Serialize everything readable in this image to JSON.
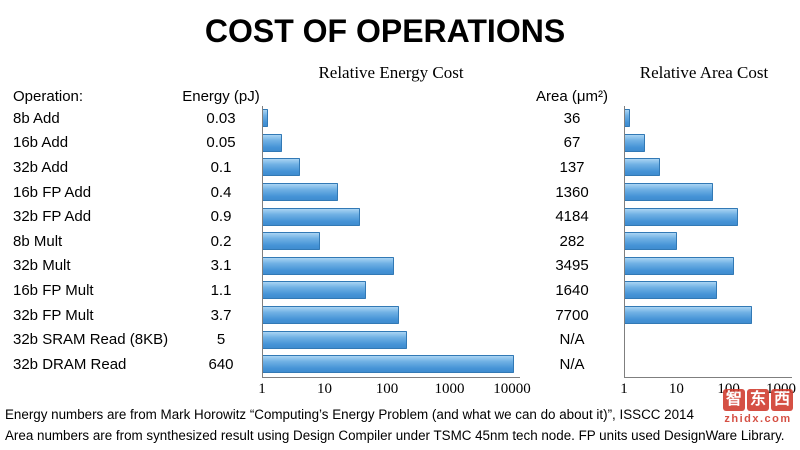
{
  "title": "COST OF OPERATIONS",
  "headers": {
    "operation": "Operation:",
    "energy": "Energy (pJ)",
    "area": "Area (μm²)",
    "energy_chart": "Relative Energy Cost",
    "area_chart": "Relative Area Cost"
  },
  "rows": [
    {
      "op": "8b Add",
      "energy": "0.03",
      "area": "36"
    },
    {
      "op": "16b Add",
      "energy": "0.05",
      "area": "67"
    },
    {
      "op": "32b Add",
      "energy": "0.1",
      "area": "137"
    },
    {
      "op": "16b FP Add",
      "energy": "0.4",
      "area": "1360"
    },
    {
      "op": "32b FP Add",
      "energy": "0.9",
      "area": "4184"
    },
    {
      "op": "8b Mult",
      "energy": "0.2",
      "area": "282"
    },
    {
      "op": "32b Mult",
      "energy": "3.1",
      "area": "3495"
    },
    {
      "op": "16b FP Mult",
      "energy": "1.1",
      "area": "1640"
    },
    {
      "op": "32b FP Mult",
      "energy": "3.7",
      "area": "7700"
    },
    {
      "op": "32b SRAM Read (8KB)",
      "energy": "5",
      "area": "N/A"
    },
    {
      "op": "32b DRAM Read",
      "energy": "640",
      "area": "N/A"
    }
  ],
  "chart_data": [
    {
      "type": "bar",
      "orientation": "horizontal",
      "title": "Relative Energy Cost",
      "xscale": "log",
      "xticks": [
        "1",
        "10",
        "100",
        "1000",
        "10000"
      ],
      "xlim": [
        1,
        10000
      ],
      "categories": [
        "8b Add",
        "16b Add",
        "32b Add",
        "16b FP Add",
        "32b FP Add",
        "8b Mult",
        "32b Mult",
        "16b FP Mult",
        "32b FP Mult",
        "32b SRAM Read (8KB)",
        "32b DRAM Read"
      ],
      "source_values_pJ": [
        0.03,
        0.05,
        0.1,
        0.4,
        0.9,
        0.2,
        3.1,
        1.1,
        3.7,
        5,
        640
      ],
      "relative_values": [
        1,
        1.7,
        3.3,
        13.3,
        30,
        6.7,
        103,
        36.7,
        123,
        167,
        21333
      ],
      "grid": false,
      "legend": false
    },
    {
      "type": "bar",
      "orientation": "horizontal",
      "title": "Relative Area Cost",
      "xscale": "log",
      "xticks": [
        "1",
        "10",
        "100",
        "1000"
      ],
      "xlim": [
        1,
        1000
      ],
      "categories": [
        "8b Add",
        "16b Add",
        "32b Add",
        "16b FP Add",
        "32b FP Add",
        "8b Mult",
        "32b Mult",
        "16b FP Mult",
        "32b FP Mult",
        "32b SRAM Read (8KB)",
        "32b DRAM Read"
      ],
      "source_values_um2": [
        36,
        67,
        137,
        1360,
        4184,
        282,
        3495,
        1640,
        7700,
        null,
        null
      ],
      "relative_values": [
        1,
        1.9,
        3.8,
        37.8,
        116,
        7.8,
        97,
        45.6,
        214,
        null,
        null
      ],
      "grid": false,
      "legend": false
    }
  ],
  "footer": {
    "line1": "Energy numbers are from Mark Horowitz “Computing’s Energy Problem (and what we can do about it)”, ISSCC 2014",
    "line2": "Area numbers are from synthesized result using Design Compiler under TSMC 45nm tech node. FP units used DesignWare Library."
  },
  "watermark": {
    "chars": [
      "智",
      "东",
      "西"
    ],
    "domain": "zhidx.com"
  },
  "colors": {
    "bar_fill": "#4593d6",
    "bar_border": "#3279b5",
    "axis": "#7f7f7f",
    "watermark_red": "#d0382b"
  }
}
